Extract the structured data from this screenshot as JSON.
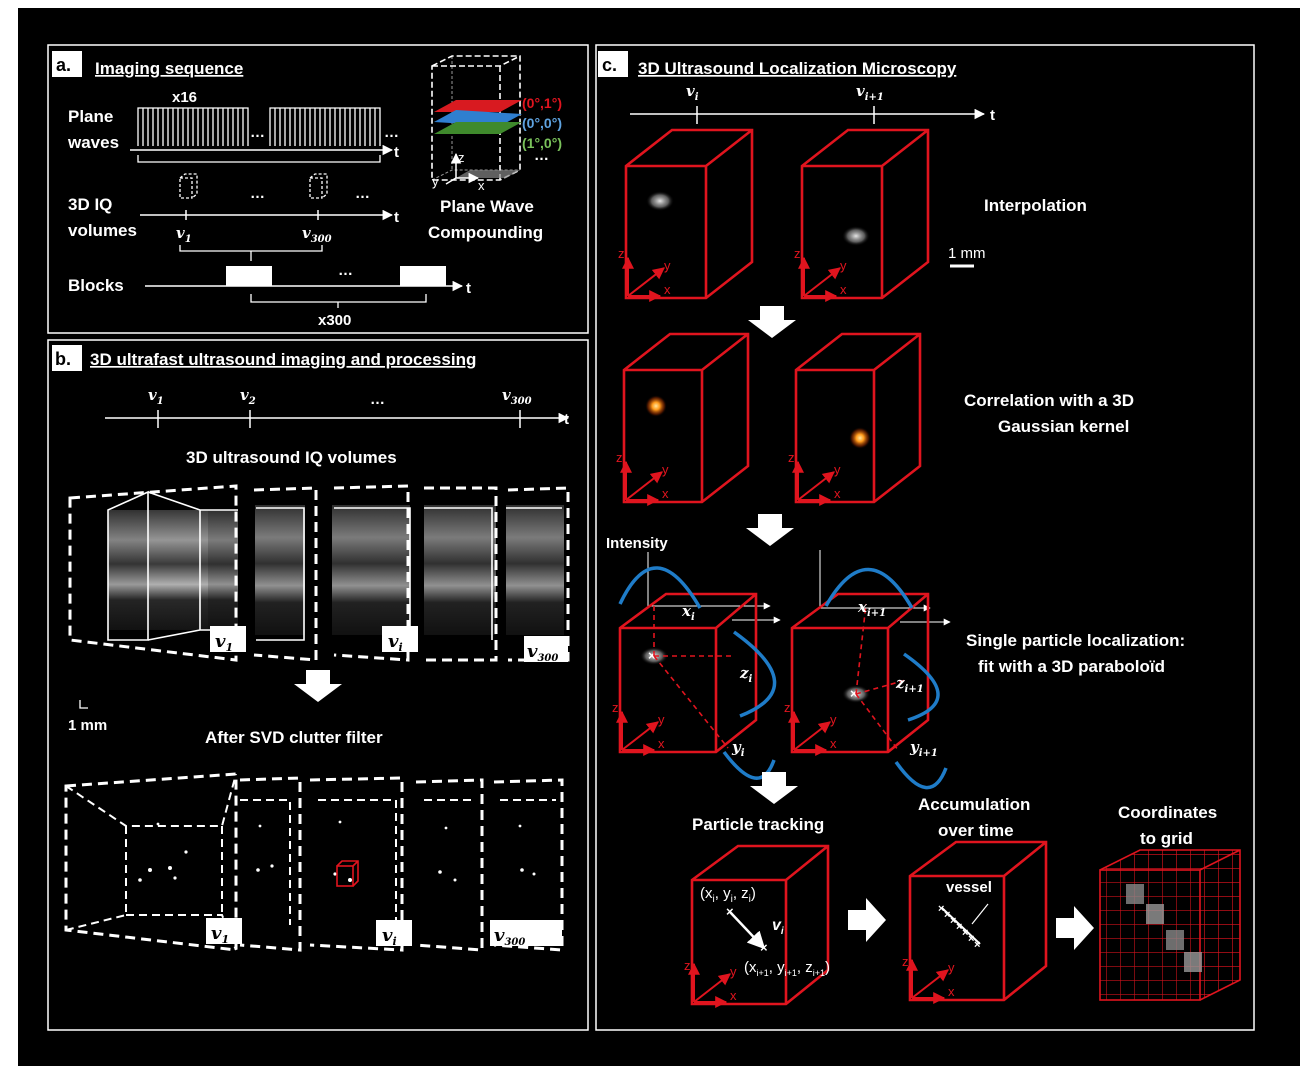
{
  "panel_a": {
    "label": "a.",
    "title": "Imaging sequence",
    "plane_waves_label_1": "Plane",
    "plane_waves_label_2": "waves",
    "repeat_top": "x16",
    "iq_label_1": "3D IQ",
    "iq_label_2": "volumes",
    "v1": "v",
    "v1_sub": "1",
    "v300": "v",
    "v300_sub": "300",
    "blocks_label": "Blocks",
    "repeat_blocks": "x300",
    "ellipsis": "…",
    "t": "t",
    "compounding_title_1": "Plane Wave",
    "compounding_title_2": "Compounding",
    "angle_red": "(0°,1°)",
    "angle_blue": "(0°,0°)",
    "angle_green": "(1°,0°)",
    "axis_z": "z",
    "axis_y": "y",
    "axis_x": "x"
  },
  "panel_b": {
    "label": "b.",
    "title": "3D ultrafast ultrasound imaging and processing",
    "t": "t",
    "v1": "v",
    "v1_sub": "1",
    "v2": "v",
    "v2_sub": "2",
    "v300": "v",
    "v300_sub": "300",
    "vi_sub": "i",
    "ellipsis": "…",
    "iq_title": "3D ultrasound IQ volumes",
    "svd_title": "After SVD clutter filter",
    "scale": "1 mm"
  },
  "panel_c": {
    "label": "c.",
    "title": "3D Ultrasound Localization Microscopy",
    "t": "t",
    "vi": "v",
    "vi_sub": "i",
    "vi1_sub": "i+1",
    "step1": "Interpolation",
    "scale": "1 mm",
    "step2_1": "Correlation with a 3D",
    "step2_2": "Gaussian kernel",
    "intensity": "Intensity",
    "xi": "x",
    "yi": "y",
    "zi": "z",
    "sub_i": "i",
    "sub_i1": "i+1",
    "step3_1": "Single particle localization:",
    "step3_2": "fit with a 3D paraboloïd",
    "tracking": "Particle tracking",
    "accum_1": "Accumulation",
    "accum_2": "over time",
    "coords_1": "Coordinates",
    "coords_2": "to grid",
    "coord_i": "(x",
    "coord_i1": "(x",
    "velocity": "v",
    "vessel": "vessel",
    "axis_z": "z",
    "axis_y": "y",
    "axis_x": "x"
  },
  "colors": {
    "background": "#000000",
    "frame": "#ffffff",
    "red": "#e0141e",
    "blue": "#1f7cc8",
    "green": "#4e9a3a",
    "angle_blue": "#5fa3e0",
    "angle_green": "#7ac25b"
  }
}
